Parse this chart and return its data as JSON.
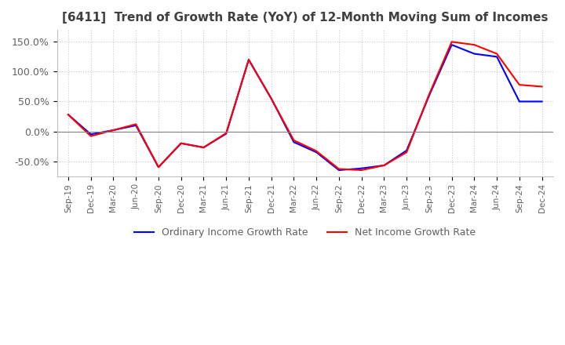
{
  "title": "[6411]  Trend of Growth Rate (YoY) of 12-Month Moving Sum of Incomes",
  "ylim": [
    -0.75,
    1.7
  ],
  "yticks": [
    -0.5,
    0.0,
    0.5,
    1.0,
    1.5
  ],
  "ytick_labels": [
    "-50.0%",
    "0.0%",
    "50.0%",
    "100.0%",
    "150.0%"
  ],
  "x_labels": [
    "Sep-19",
    "Dec-19",
    "Mar-20",
    "Jun-20",
    "Sep-20",
    "Dec-20",
    "Mar-21",
    "Jun-21",
    "Sep-21",
    "Dec-21",
    "Mar-22",
    "Jun-22",
    "Sep-22",
    "Dec-22",
    "Mar-23",
    "Jun-23",
    "Sep-23",
    "Dec-23",
    "Mar-24",
    "Jun-24",
    "Sep-24",
    "Dec-24"
  ],
  "ordinary_income": [
    0.28,
    -0.05,
    0.02,
    0.1,
    -0.6,
    -0.2,
    -0.27,
    -0.04,
    1.2,
    0.55,
    -0.18,
    -0.35,
    -0.65,
    -0.62,
    -0.57,
    -0.32,
    0.6,
    1.45,
    1.3,
    1.25,
    0.5,
    0.5
  ],
  "net_income": [
    0.28,
    -0.08,
    0.02,
    0.12,
    -0.6,
    -0.2,
    -0.27,
    -0.03,
    1.2,
    0.55,
    -0.15,
    -0.33,
    -0.63,
    -0.65,
    -0.57,
    -0.35,
    0.62,
    1.5,
    1.45,
    1.3,
    0.78,
    0.75
  ],
  "ordinary_color": "#0000ff",
  "net_color": "#ff0000",
  "grid_color": "#c8c8d8",
  "bg_color": "#ffffff",
  "legend_ordinary": "Ordinary Income Growth Rate",
  "legend_net": "Net Income Growth Rate",
  "title_color": "#404040",
  "tick_color": "#606060",
  "zero_line_color": "#808080"
}
